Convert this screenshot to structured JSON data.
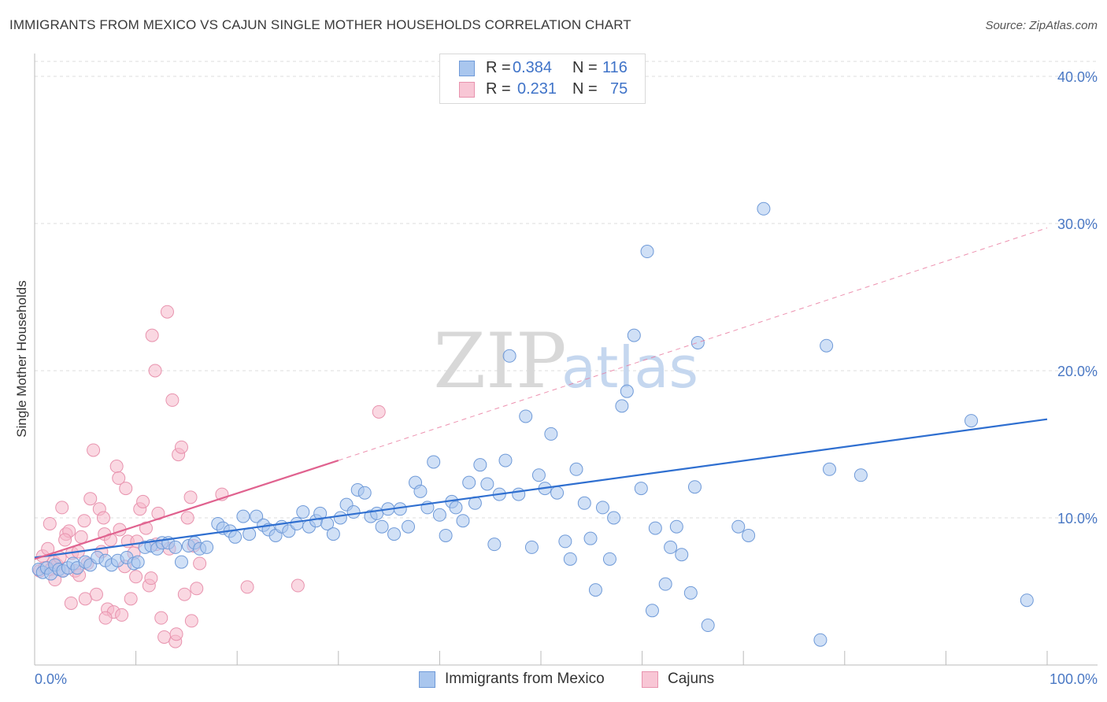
{
  "title": "IMMIGRANTS FROM MEXICO VS CAJUN SINGLE MOTHER HOUSEHOLDS CORRELATION CHART",
  "source": "Source: ZipAtlas.com",
  "watermark": {
    "zip": "ZIP",
    "atlas": "atlas"
  },
  "colors": {
    "mexico": "#4f86d6",
    "cajun": "#e8779c",
    "mexico_fill": "#a9c6ee",
    "cajun_fill": "#f5b8cb"
  },
  "legend": {
    "rows": [
      {
        "r_label": "R =",
        "r_value": "0.384",
        "n_label": "N =",
        "n_value": "116"
      },
      {
        "r_label": "R =",
        "r_value": "0.231",
        "n_label": "N =",
        "n_value": "75"
      }
    ]
  },
  "bottom_legend": {
    "mexico": "Immigrants from Mexico",
    "cajun": "Cajuns"
  },
  "chart_data": {
    "type": "scatter",
    "title": "IMMIGRANTS FROM MEXICO VS CAJUN SINGLE MOTHER HOUSEHOLDS CORRELATION CHART",
    "xlabel": "",
    "ylabel": "Single Mother Households",
    "xlim": [
      0,
      100
    ],
    "ylim": [
      0,
      40
    ],
    "x_tick_labels": [
      "0.0%",
      "100.0%"
    ],
    "y_ticks": [
      10,
      20,
      30,
      40
    ],
    "y_tick_labels": [
      "10.0%",
      "20.0%",
      "30.0%",
      "40.0%"
    ],
    "grid": true,
    "series": [
      {
        "name": "Immigrants from Mexico",
        "r": 0.384,
        "n": 116,
        "trend": {
          "x": [
            0,
            100
          ],
          "y": [
            7.3,
            16.7
          ],
          "style": "solid"
        },
        "points": [
          [
            0.4,
            6.5
          ],
          [
            0.8,
            6.3
          ],
          [
            1.2,
            6.6
          ],
          [
            1.6,
            6.2
          ],
          [
            2.0,
            6.8
          ],
          [
            2.4,
            6.5
          ],
          [
            2.8,
            6.4
          ],
          [
            3.3,
            6.6
          ],
          [
            3.8,
            6.9
          ],
          [
            4.2,
            6.6
          ],
          [
            5.0,
            7.0
          ],
          [
            5.5,
            6.8
          ],
          [
            6.2,
            7.3
          ],
          [
            7.0,
            7.1
          ],
          [
            7.6,
            6.8
          ],
          [
            8.2,
            7.1
          ],
          [
            9.1,
            7.3
          ],
          [
            9.8,
            6.9
          ],
          [
            10.2,
            7.0
          ],
          [
            10.9,
            8.0
          ],
          [
            11.5,
            8.1
          ],
          [
            12.1,
            7.9
          ],
          [
            12.6,
            8.3
          ],
          [
            13.2,
            8.3
          ],
          [
            13.9,
            8.0
          ],
          [
            14.5,
            7.0
          ],
          [
            15.2,
            8.1
          ],
          [
            15.8,
            8.3
          ],
          [
            16.3,
            7.9
          ],
          [
            17.0,
            8.0
          ],
          [
            18.1,
            9.6
          ],
          [
            18.6,
            9.3
          ],
          [
            19.3,
            9.1
          ],
          [
            19.8,
            8.7
          ],
          [
            20.6,
            10.1
          ],
          [
            21.2,
            8.9
          ],
          [
            21.9,
            10.1
          ],
          [
            22.6,
            9.5
          ],
          [
            23.1,
            9.2
          ],
          [
            23.8,
            8.8
          ],
          [
            24.4,
            9.4
          ],
          [
            25.1,
            9.1
          ],
          [
            25.9,
            9.6
          ],
          [
            26.5,
            10.4
          ],
          [
            27.1,
            9.4
          ],
          [
            27.8,
            9.8
          ],
          [
            28.2,
            10.3
          ],
          [
            28.9,
            9.6
          ],
          [
            29.5,
            8.9
          ],
          [
            30.2,
            10.0
          ],
          [
            30.8,
            10.9
          ],
          [
            31.5,
            10.4
          ],
          [
            31.9,
            11.9
          ],
          [
            32.6,
            11.7
          ],
          [
            33.2,
            10.1
          ],
          [
            33.8,
            10.3
          ],
          [
            34.3,
            9.4
          ],
          [
            34.9,
            10.6
          ],
          [
            35.5,
            8.9
          ],
          [
            36.1,
            10.6
          ],
          [
            36.9,
            9.4
          ],
          [
            37.6,
            12.4
          ],
          [
            38.1,
            11.8
          ],
          [
            38.8,
            10.7
          ],
          [
            39.4,
            13.8
          ],
          [
            40.0,
            10.2
          ],
          [
            40.6,
            8.8
          ],
          [
            41.2,
            11.1
          ],
          [
            41.6,
            10.7
          ],
          [
            42.3,
            9.8
          ],
          [
            42.9,
            12.4
          ],
          [
            43.5,
            11.0
          ],
          [
            44.0,
            13.6
          ],
          [
            44.7,
            12.3
          ],
          [
            45.4,
            8.2
          ],
          [
            45.9,
            11.6
          ],
          [
            46.5,
            13.9
          ],
          [
            46.9,
            21.0
          ],
          [
            47.8,
            11.6
          ],
          [
            48.5,
            16.9
          ],
          [
            49.1,
            8.0
          ],
          [
            49.8,
            12.9
          ],
          [
            50.4,
            12.0
          ],
          [
            51.0,
            15.7
          ],
          [
            51.6,
            11.7
          ],
          [
            52.4,
            8.4
          ],
          [
            52.9,
            7.2
          ],
          [
            53.5,
            13.3
          ],
          [
            54.3,
            11.0
          ],
          [
            54.9,
            8.6
          ],
          [
            55.4,
            5.1
          ],
          [
            56.1,
            10.7
          ],
          [
            56.8,
            7.2
          ],
          [
            57.2,
            10.0
          ],
          [
            58.0,
            17.6
          ],
          [
            58.5,
            18.6
          ],
          [
            59.2,
            22.4
          ],
          [
            59.9,
            12.0
          ],
          [
            60.5,
            28.1
          ],
          [
            61.0,
            3.7
          ],
          [
            61.3,
            9.3
          ],
          [
            62.3,
            5.5
          ],
          [
            62.8,
            8.0
          ],
          [
            63.4,
            9.4
          ],
          [
            63.9,
            7.5
          ],
          [
            64.8,
            4.9
          ],
          [
            65.2,
            12.1
          ],
          [
            65.5,
            21.9
          ],
          [
            66.5,
            2.7
          ],
          [
            69.5,
            9.4
          ],
          [
            70.5,
            8.8
          ],
          [
            72.0,
            31.0
          ],
          [
            77.6,
            1.7
          ],
          [
            78.2,
            21.7
          ],
          [
            78.5,
            13.3
          ],
          [
            81.6,
            12.9
          ],
          [
            92.5,
            16.6
          ],
          [
            98.0,
            4.4
          ]
        ]
      },
      {
        "name": "Cajuns",
        "r": 0.231,
        "n": 75,
        "trend": {
          "x": [
            0,
            30
          ],
          "y": [
            7.2,
            13.9
          ],
          "style": "solid"
        },
        "trend_extension": {
          "x": [
            30,
            100
          ],
          "y": [
            13.9,
            29.7
          ],
          "style": "dashed"
        },
        "points": [
          [
            0.5,
            6.4
          ],
          [
            0.8,
            7.4
          ],
          [
            1.0,
            6.6
          ],
          [
            1.3,
            7.9
          ],
          [
            1.6,
            6.5
          ],
          [
            1.9,
            7.0
          ],
          [
            2.2,
            6.8
          ],
          [
            2.5,
            7.3
          ],
          [
            2.8,
            6.4
          ],
          [
            3.1,
            8.9
          ],
          [
            3.4,
            9.1
          ],
          [
            3.7,
            7.6
          ],
          [
            4.0,
            6.4
          ],
          [
            4.3,
            7.7
          ],
          [
            4.6,
            8.7
          ],
          [
            4.9,
            9.8
          ],
          [
            5.2,
            6.9
          ],
          [
            5.5,
            11.3
          ],
          [
            5.8,
            14.6
          ],
          [
            6.1,
            4.8
          ],
          [
            6.4,
            10.6
          ],
          [
            6.6,
            7.7
          ],
          [
            6.9,
            8.9
          ],
          [
            7.2,
            3.8
          ],
          [
            7.5,
            8.5
          ],
          [
            7.8,
            3.6
          ],
          [
            8.1,
            13.5
          ],
          [
            8.3,
            12.7
          ],
          [
            8.6,
            3.4
          ],
          [
            8.9,
            6.7
          ],
          [
            9.2,
            8.4
          ],
          [
            9.5,
            4.5
          ],
          [
            9.8,
            7.6
          ],
          [
            10.1,
            8.4
          ],
          [
            10.4,
            10.6
          ],
          [
            10.7,
            11.1
          ],
          [
            11.0,
            9.3
          ],
          [
            11.3,
            5.4
          ],
          [
            11.6,
            22.4
          ],
          [
            11.9,
            20.0
          ],
          [
            12.2,
            10.3
          ],
          [
            12.5,
            3.2
          ],
          [
            12.8,
            1.9
          ],
          [
            13.1,
            24.0
          ],
          [
            13.3,
            7.9
          ],
          [
            13.6,
            18.0
          ],
          [
            13.9,
            1.6
          ],
          [
            14.2,
            14.3
          ],
          [
            14.5,
            14.8
          ],
          [
            14.8,
            4.8
          ],
          [
            15.1,
            10.0
          ],
          [
            15.4,
            11.4
          ],
          [
            15.7,
            8.1
          ],
          [
            16.0,
            5.2
          ],
          [
            16.3,
            6.9
          ],
          [
            18.5,
            11.6
          ],
          [
            21.0,
            5.3
          ],
          [
            26.0,
            5.4
          ],
          [
            34.0,
            17.2
          ],
          [
            3.0,
            8.5
          ],
          [
            4.4,
            6.1
          ],
          [
            6.8,
            10.0
          ],
          [
            9.0,
            12.0
          ],
          [
            2.0,
            5.8
          ],
          [
            5.0,
            4.5
          ],
          [
            7.0,
            3.2
          ],
          [
            10.0,
            6.0
          ],
          [
            12.0,
            8.2
          ],
          [
            14.0,
            2.1
          ],
          [
            1.5,
            9.6
          ],
          [
            2.7,
            10.7
          ],
          [
            3.6,
            4.2
          ],
          [
            8.4,
            9.2
          ],
          [
            11.5,
            5.9
          ],
          [
            15.5,
            3.0
          ]
        ]
      }
    ]
  }
}
